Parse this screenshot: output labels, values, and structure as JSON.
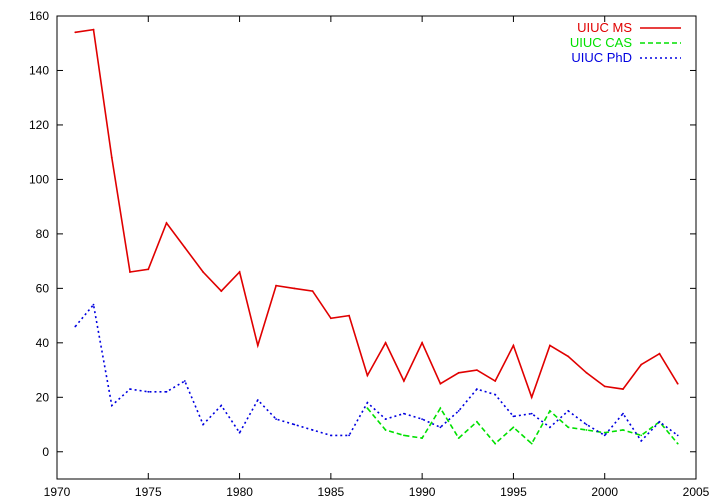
{
  "chart_data": {
    "type": "line",
    "title": "",
    "xlabel": "",
    "ylabel": "",
    "xlim": [
      1970,
      2005
    ],
    "ylim": [
      -10,
      160
    ],
    "xticks": [
      1970,
      1975,
      1980,
      1985,
      1990,
      1995,
      2000,
      2005
    ],
    "yticks": [
      0,
      20,
      40,
      60,
      80,
      100,
      120,
      140,
      160
    ],
    "grid": false,
    "legend_position": "top-right",
    "series": [
      {
        "name": "UIUC MS",
        "color": "#e00000",
        "dash": "solid",
        "points": [
          [
            1971,
            154
          ],
          [
            1972,
            155
          ],
          [
            1973,
            108
          ],
          [
            1974,
            66
          ],
          [
            1975,
            67
          ],
          [
            1976,
            84
          ],
          [
            1977,
            75
          ],
          [
            1978,
            66
          ],
          [
            1979,
            59
          ],
          [
            1980,
            66
          ],
          [
            1981,
            39
          ],
          [
            1982,
            61
          ],
          [
            1983,
            60
          ],
          [
            1984,
            59
          ],
          [
            1985,
            49
          ],
          [
            1986,
            50
          ],
          [
            1987,
            28
          ],
          [
            1988,
            40
          ],
          [
            1989,
            26
          ],
          [
            1990,
            40
          ],
          [
            1991,
            25
          ],
          [
            1992,
            29
          ],
          [
            1993,
            30
          ],
          [
            1994,
            26
          ],
          [
            1995,
            39
          ],
          [
            1996,
            20
          ],
          [
            1997,
            39
          ],
          [
            1998,
            35
          ],
          [
            1999,
            29
          ],
          [
            2000,
            24
          ],
          [
            2001,
            23
          ],
          [
            2002,
            32
          ],
          [
            2003,
            36
          ],
          [
            2004,
            25
          ]
        ]
      },
      {
        "name": "UIUC CAS",
        "color": "#00e000",
        "dash": "dashed",
        "points": [
          [
            1987,
            16
          ],
          [
            1988,
            8
          ],
          [
            1989,
            6
          ],
          [
            1990,
            5
          ],
          [
            1991,
            16
          ],
          [
            1992,
            5
          ],
          [
            1993,
            11
          ],
          [
            1994,
            3
          ],
          [
            1995,
            9
          ],
          [
            1996,
            3
          ],
          [
            1997,
            15
          ],
          [
            1998,
            9
          ],
          [
            1999,
            8
          ],
          [
            2000,
            7
          ],
          [
            2001,
            8
          ],
          [
            2002,
            6
          ],
          [
            2003,
            11
          ],
          [
            2004,
            3
          ]
        ]
      },
      {
        "name": "UIUC PhD",
        "color": "#0000e0",
        "dash": "dotted",
        "points": [
          [
            1971,
            46
          ],
          [
            1972,
            54
          ],
          [
            1973,
            17
          ],
          [
            1974,
            23
          ],
          [
            1975,
            22
          ],
          [
            1976,
            22
          ],
          [
            1977,
            26
          ],
          [
            1978,
            10
          ],
          [
            1979,
            17
          ],
          [
            1980,
            7
          ],
          [
            1981,
            19
          ],
          [
            1982,
            12
          ],
          [
            1983,
            10
          ],
          [
            1984,
            8
          ],
          [
            1985,
            6
          ],
          [
            1986,
            6
          ],
          [
            1987,
            18
          ],
          [
            1988,
            12
          ],
          [
            1989,
            14
          ],
          [
            1990,
            12
          ],
          [
            1991,
            9
          ],
          [
            1992,
            15
          ],
          [
            1993,
            23
          ],
          [
            1994,
            21
          ],
          [
            1995,
            13
          ],
          [
            1996,
            14
          ],
          [
            1997,
            9
          ],
          [
            1998,
            15
          ],
          [
            1999,
            10
          ],
          [
            2000,
            6
          ],
          [
            2001,
            14
          ],
          [
            2002,
            4
          ],
          [
            2003,
            11
          ],
          [
            2004,
            6
          ]
        ]
      }
    ]
  }
}
